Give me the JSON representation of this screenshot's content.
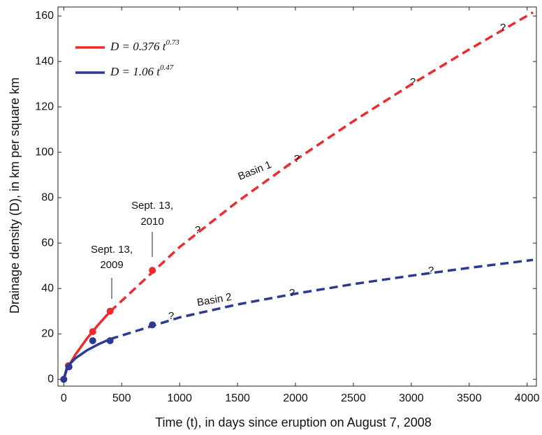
{
  "chart_data": {
    "type": "line",
    "xlabel": "Time (t), in days since eruption on August 7, 2008",
    "ylabel": "Drainage density (D), in km per square km",
    "xlim": [
      -50,
      4080
    ],
    "ylim": [
      -3,
      164
    ],
    "xticks": [
      0,
      500,
      1000,
      1500,
      2000,
      2500,
      3000,
      3500,
      4000
    ],
    "yticks": [
      0,
      20,
      40,
      60,
      80,
      100,
      120,
      140,
      160
    ],
    "grid": false,
    "legend": "upper left",
    "series": [
      {
        "name": "D = 0.376 t",
        "exponent": "0.73",
        "color": "#ee2a2f",
        "fit": {
          "x": [
            0,
            25,
            50,
            100,
            200,
            300,
            400
          ],
          "values": [
            0,
            3.94,
            6.54,
            10.84,
            17.98,
            24.18,
            29.83
          ]
        },
        "extrapolation": {
          "x": [
            400,
            1000,
            1500,
            2000,
            2500,
            3000,
            3500,
            4050
          ],
          "values": [
            29.83,
            58.25,
            78.3,
            96.6,
            113.7,
            129.9,
            145.3,
            161.6
          ]
        },
        "points": {
          "x": [
            0,
            40,
            250,
            400,
            765
          ],
          "values": [
            0,
            6,
            21,
            30,
            48
          ]
        }
      },
      {
        "name": "D = 1.06 t",
        "exponent": "0.47",
        "color": "#2b3a94",
        "fit": {
          "x": [
            0,
            25,
            50,
            100,
            200,
            300,
            400
          ],
          "values": [
            0,
            4.81,
            6.67,
            9.23,
            12.79,
            15.47,
            17.71
          ]
        },
        "extrapolation": {
          "x": [
            400,
            1000,
            1500,
            2000,
            2500,
            3000,
            3500,
            4050
          ],
          "values": [
            17.71,
            27.25,
            32.97,
            37.73,
            41.92,
            45.66,
            49.1,
            52.6
          ]
        },
        "points": {
          "x": [
            0,
            45,
            250,
            400,
            765
          ],
          "values": [
            0,
            5.5,
            17,
            17,
            24
          ]
        }
      }
    ],
    "annotations": [
      "Sept. 13,",
      "2009",
      "Sept. 13,",
      "2010",
      "Basin 1",
      "Basin 2"
    ],
    "question_marks": [
      "?",
      "?",
      "?",
      "?",
      "?",
      "?",
      "?"
    ]
  }
}
